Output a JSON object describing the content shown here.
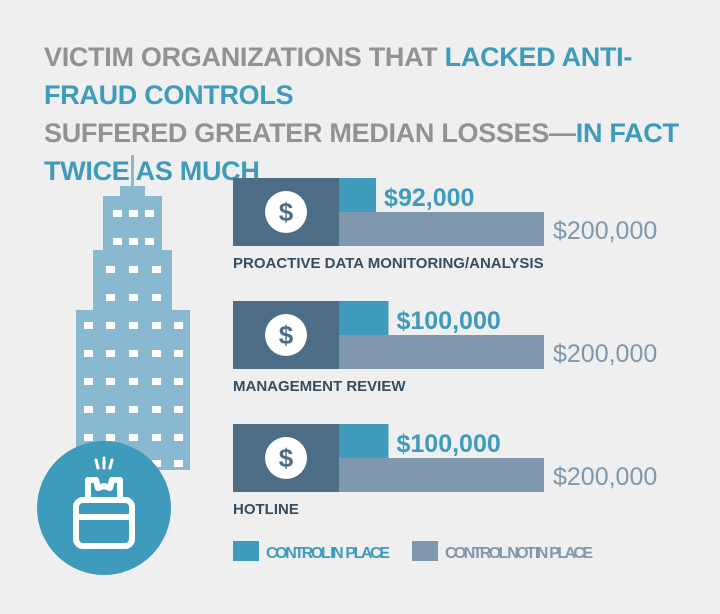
{
  "title": {
    "line1_gray": "VICTIM ORGANIZATIONS THAT ",
    "line1_blue": "LACKED ANTI-FRAUD CONTROLS",
    "line2_gray": "SUFFERED GREATER MEDIAN LOSSES—",
    "line2_blue": "IN FACT TWICE AS MUCH"
  },
  "colors": {
    "control_in_place": "#3f9bbb",
    "control_not_in_place": "#7f98ad",
    "dollar_box": "#4d6c86",
    "building": "#89b9d0",
    "circle": "#3f9bbb",
    "label": "#364d60",
    "value_blue": "#3f9bbb",
    "value_gray": "#7f98ad"
  },
  "icons": [
    "dollar-icon",
    "building-icon",
    "broken-alarm-icon"
  ],
  "chart_data": {
    "type": "bar",
    "orientation": "horizontal",
    "categories": [
      "PROACTIVE DATA MONITORING/ANALYSIS",
      "MANAGEMENT REVIEW",
      "HOTLINE"
    ],
    "series": [
      {
        "name": "CONTROL IN  PLACE",
        "values": [
          92000,
          100000,
          100000
        ],
        "labels": [
          "$92,000",
          "$100,000",
          "$100,000"
        ]
      },
      {
        "name": "CONTROL NOT IN  PLACE",
        "values": [
          200000,
          200000,
          200000
        ],
        "labels": [
          "$200,000",
          "$200,000",
          "$200,000"
        ]
      }
    ],
    "legend_position": "bottom",
    "grid": false
  }
}
